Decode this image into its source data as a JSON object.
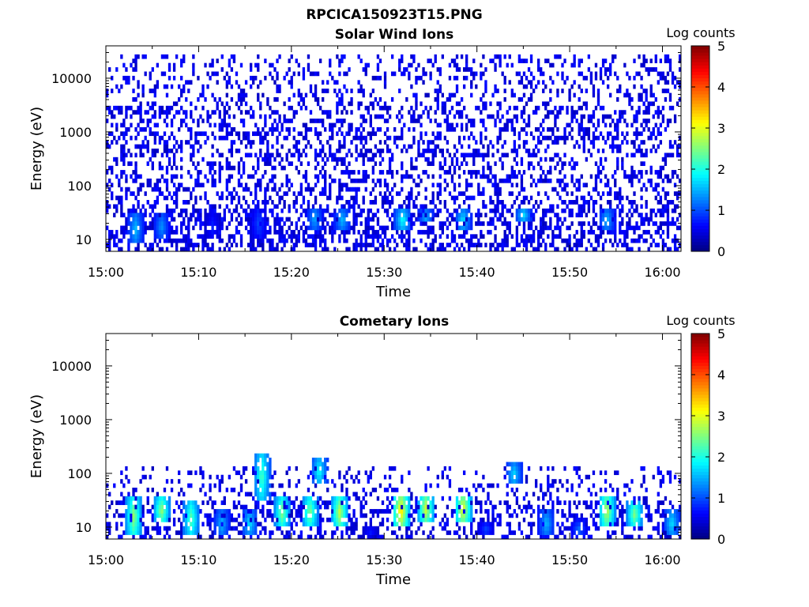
{
  "figure": {
    "title": "RPCICA150923T15.PNG"
  },
  "chart_data": [
    {
      "type": "heatmap",
      "title": "Solar Wind Ions",
      "xlabel": "Time",
      "ylabel": "Energy (eV)",
      "x_ticks": [
        "15:00",
        "15:10",
        "15:20",
        "15:30",
        "15:40",
        "15:50",
        "16:00"
      ],
      "x_range_minutes": [
        0,
        62
      ],
      "y_scale": "log",
      "y_ticks": [
        10,
        100,
        1000,
        10000
      ],
      "y_range": [
        6,
        40000
      ],
      "colorbar": {
        "label": "Log counts",
        "range": [
          0,
          5
        ],
        "ticks": [
          0,
          1,
          2,
          3,
          4,
          5
        ],
        "colormap": "jet"
      },
      "grid": false,
      "description_of_values": {
        "background_noise_log_counts": 0.3,
        "noise_energy_range_eV": [
          6,
          30000
        ],
        "low_energy_bursts": [
          {
            "time_min": 3.2,
            "energy_eV": [
              8,
              30
            ],
            "peak_log_counts": 1.6
          },
          {
            "time_min": 6.0,
            "energy_eV": [
              10,
              30
            ],
            "peak_log_counts": 1.4
          },
          {
            "time_min": 11.5,
            "energy_eV": [
              10,
              30
            ],
            "peak_log_counts": 0.8
          },
          {
            "time_min": 16.5,
            "energy_eV": [
              10,
              40
            ],
            "peak_log_counts": 1.0
          },
          {
            "time_min": 22.5,
            "energy_eV": [
              15,
              40
            ],
            "peak_log_counts": 1.5
          },
          {
            "time_min": 25.5,
            "energy_eV": [
              15,
              35
            ],
            "peak_log_counts": 1.6
          },
          {
            "time_min": 32.0,
            "energy_eV": [
              15,
              35
            ],
            "peak_log_counts": 2.0
          },
          {
            "time_min": 34.5,
            "energy_eV": [
              20,
              35
            ],
            "peak_log_counts": 1.6
          },
          {
            "time_min": 38.5,
            "energy_eV": [
              15,
              35
            ],
            "peak_log_counts": 1.8
          },
          {
            "time_min": 45.0,
            "energy_eV": [
              20,
              40
            ],
            "peak_log_counts": 1.8
          },
          {
            "time_min": 54.0,
            "energy_eV": [
              15,
              35
            ],
            "peak_log_counts": 1.6
          }
        ]
      }
    },
    {
      "type": "heatmap",
      "title": "Cometary Ions",
      "xlabel": "Time",
      "ylabel": "Energy (eV)",
      "x_ticks": [
        "15:00",
        "15:10",
        "15:20",
        "15:30",
        "15:40",
        "15:50",
        "16:00"
      ],
      "x_range_minutes": [
        0,
        62
      ],
      "y_scale": "log",
      "y_ticks": [
        10,
        100,
        1000,
        10000
      ],
      "y_range": [
        6,
        40000
      ],
      "colorbar": {
        "label": "Log counts",
        "range": [
          0,
          5
        ],
        "ticks": [
          0,
          1,
          2,
          3,
          4,
          5
        ],
        "colormap": "jet"
      },
      "grid": false,
      "description_of_values": {
        "background_noise_log_counts": 0.3,
        "noise_energy_range_eV": [
          6,
          200
        ],
        "bursts": [
          {
            "time_min": 3.0,
            "energy_eV": [
              7,
              35
            ],
            "peak_log_counts": 2.7
          },
          {
            "time_min": 6.0,
            "energy_eV": [
              12,
              35
            ],
            "peak_log_counts": 2.7
          },
          {
            "time_min": 9.2,
            "energy_eV": [
              7,
              30
            ],
            "peak_log_counts": 2.4
          },
          {
            "time_min": 12.5,
            "energy_eV": [
              7,
              20
            ],
            "peak_log_counts": 1.6
          },
          {
            "time_min": 15.5,
            "energy_eV": [
              7,
              20
            ],
            "peak_log_counts": 1.8
          },
          {
            "time_min": 16.8,
            "energy_eV": [
              30,
              250
            ],
            "peak_log_counts": 2.3
          },
          {
            "time_min": 19.0,
            "energy_eV": [
              10,
              35
            ],
            "peak_log_counts": 2.6
          },
          {
            "time_min": 22.0,
            "energy_eV": [
              10,
              35
            ],
            "peak_log_counts": 2.6
          },
          {
            "time_min": 23.0,
            "energy_eV": [
              60,
              200
            ],
            "peak_log_counts": 2.0
          },
          {
            "time_min": 25.2,
            "energy_eV": [
              10,
              35
            ],
            "peak_log_counts": 2.9
          },
          {
            "time_min": 28.5,
            "energy_eV": [
              7,
              10
            ],
            "peak_log_counts": 0.8
          },
          {
            "time_min": 31.8,
            "energy_eV": [
              10,
              40
            ],
            "peak_log_counts": 3.4
          },
          {
            "time_min": 34.5,
            "energy_eV": [
              12,
              40
            ],
            "peak_log_counts": 3.0
          },
          {
            "time_min": 38.5,
            "energy_eV": [
              12,
              40
            ],
            "peak_log_counts": 3.2
          },
          {
            "time_min": 41.0,
            "energy_eV": [
              7,
              12
            ],
            "peak_log_counts": 1.0
          },
          {
            "time_min": 44.0,
            "energy_eV": [
              60,
              150
            ],
            "peak_log_counts": 1.8
          },
          {
            "time_min": 47.5,
            "energy_eV": [
              7,
              20
            ],
            "peak_log_counts": 1.6
          },
          {
            "time_min": 51.0,
            "energy_eV": [
              7,
              12
            ],
            "peak_log_counts": 1.2
          },
          {
            "time_min": 54.0,
            "energy_eV": [
              10,
              40
            ],
            "peak_log_counts": 2.9
          },
          {
            "time_min": 57.0,
            "energy_eV": [
              10,
              30
            ],
            "peak_log_counts": 2.6
          },
          {
            "time_min": 61.0,
            "energy_eV": [
              7,
              20
            ],
            "peak_log_counts": 1.8
          }
        ]
      }
    }
  ]
}
